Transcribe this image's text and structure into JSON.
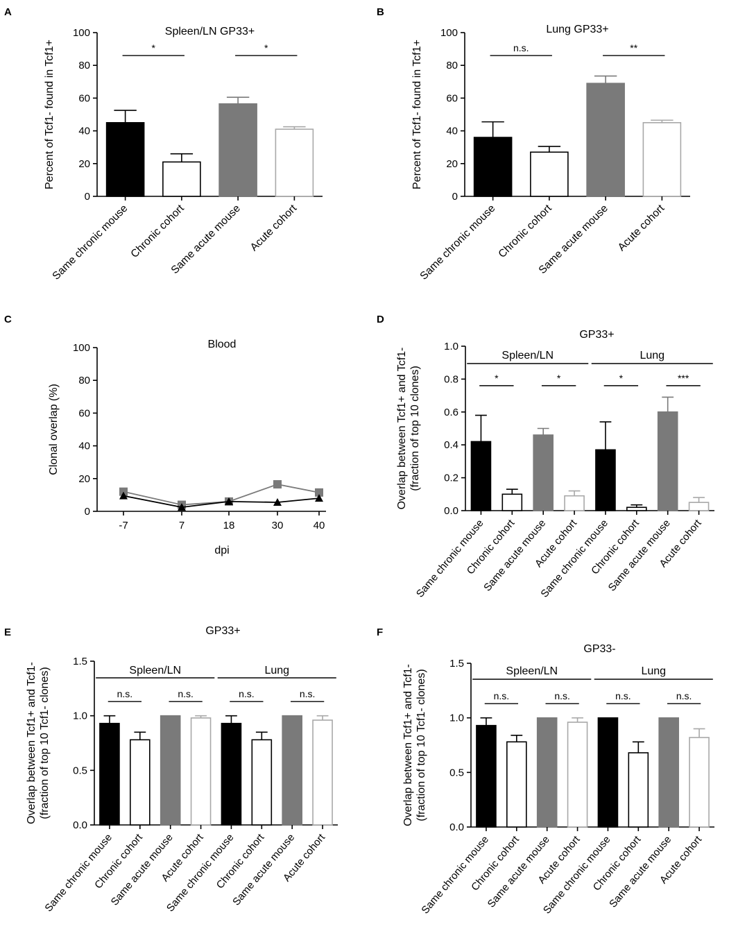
{
  "colors": {
    "black": "#000000",
    "gray": "#7a7a7a",
    "white": "#ffffff",
    "light_gray": "#a8a8a8"
  },
  "chart_data": [
    {
      "panel": "A",
      "type": "bar",
      "title": "Spleen/LN GP33+",
      "ylabel": "Percent of Tcf1- found in Tcf1+",
      "ylim": [
        0,
        100
      ],
      "yticks": [
        "0",
        "20",
        "40",
        "60",
        "80",
        "100"
      ],
      "categories": [
        "Same chronic mouse",
        "Chronic cohort",
        "Same acute mouse",
        "Acute cohort"
      ],
      "values": [
        45,
        21,
        56.5,
        41
      ],
      "errors": [
        7.5,
        5,
        4,
        1.5
      ],
      "fills": [
        "black",
        "white",
        "gray",
        "white"
      ],
      "significance": [
        {
          "from": 0,
          "to": 1,
          "label": "*",
          "y": 86
        },
        {
          "from": 2,
          "to": 3,
          "label": "*",
          "y": 86
        }
      ]
    },
    {
      "panel": "B",
      "type": "bar",
      "title": "Lung GP33+",
      "ylabel": "Percent of Tcf1- found in Tcf1+",
      "ylim": [
        0,
        100
      ],
      "yticks": [
        "0",
        "20",
        "40",
        "60",
        "80",
        "100"
      ],
      "categories": [
        "Same chronic mouse",
        "Chronic cohort",
        "Same acute mouse",
        "Acute cohort"
      ],
      "values": [
        36,
        27,
        69,
        45
      ],
      "errors": [
        9.5,
        3.5,
        4.5,
        1.5
      ],
      "fills": [
        "black",
        "white",
        "gray",
        "white"
      ],
      "significance": [
        {
          "from": 0,
          "to": 1,
          "label": "n.s.",
          "y": 86
        },
        {
          "from": 2,
          "to": 3,
          "label": "**",
          "y": 86
        }
      ]
    },
    {
      "panel": "C",
      "type": "line",
      "title": "Blood",
      "ylabel": "Clonal overlap (%)",
      "xlabel": "dpi",
      "ylim": [
        0,
        100
      ],
      "yticks": [
        "0",
        "20",
        "40",
        "60",
        "80",
        "100"
      ],
      "x": [
        "-7",
        "7",
        "18",
        "30",
        "40"
      ],
      "series": [
        {
          "name": "gray squares",
          "marker": "square",
          "color": "gray",
          "values": [
            12,
            4,
            6,
            16.5,
            11.5
          ]
        },
        {
          "name": "black triangles",
          "marker": "triangle",
          "color": "black",
          "values": [
            9.5,
            2.5,
            6,
            5.5,
            8
          ]
        }
      ]
    },
    {
      "panel": "D",
      "type": "bar",
      "title": "GP33+",
      "ylabel": [
        "Overlap between Tcf1+ and Tcf1-",
        "(fraction of top 10 clones)"
      ],
      "ylim": [
        0,
        1
      ],
      "yticks": [
        "0.0",
        "0.2",
        "0.4",
        "0.6",
        "0.8",
        "1.0"
      ],
      "groups": [
        {
          "label": "Spleen/LN",
          "from": 0,
          "to": 3
        },
        {
          "label": "Lung",
          "from": 4,
          "to": 7
        }
      ],
      "categories": [
        "Same chronic mouse",
        "Chronic cohort",
        "Same acute mouse",
        "Acute cohort",
        "Same chronic mouse",
        "Chronic cohort",
        "Same acute mouse",
        "Acute cohort"
      ],
      "values": [
        0.42,
        0.1,
        0.46,
        0.09,
        0.37,
        0.02,
        0.6,
        0.05
      ],
      "errors": [
        0.16,
        0.03,
        0.04,
        0.03,
        0.17,
        0.015,
        0.09,
        0.03
      ],
      "fills": [
        "black",
        "white",
        "gray",
        "white",
        "black",
        "white",
        "gray",
        "white"
      ],
      "significance": [
        {
          "from": 0,
          "to": 1,
          "label": "*",
          "y": 0.76
        },
        {
          "from": 2,
          "to": 3,
          "label": "*",
          "y": 0.76
        },
        {
          "from": 4,
          "to": 5,
          "label": "*",
          "y": 0.76
        },
        {
          "from": 6,
          "to": 7,
          "label": "***",
          "y": 0.76
        }
      ]
    },
    {
      "panel": "E",
      "type": "bar",
      "title": "GP33+",
      "ylabel": [
        "Overlap between Tcf1+ and Tcf1-",
        "(fraction of top 10 Tcf1- clones)"
      ],
      "ylim": [
        0,
        1.5
      ],
      "yticks": [
        "0.0",
        "0.5",
        "1.0",
        "1.5"
      ],
      "groups": [
        {
          "label": "Spleen/LN",
          "from": 0,
          "to": 3
        },
        {
          "label": "Lung",
          "from": 4,
          "to": 7
        }
      ],
      "categories": [
        "Same chronic mouse",
        "Chronic cohort",
        "Same acute mouse",
        "Acute cohort",
        "Same chronic mouse",
        "Chronic cohort",
        "Same acute mouse",
        "Acute cohort"
      ],
      "values": [
        0.93,
        0.78,
        1.0,
        0.98,
        0.93,
        0.78,
        1.0,
        0.96
      ],
      "errors": [
        0.07,
        0.07,
        0,
        0.02,
        0.07,
        0.07,
        0,
        0.04
      ],
      "fills": [
        "black",
        "white",
        "gray",
        "white",
        "black",
        "white",
        "gray",
        "white"
      ],
      "significance": [
        {
          "from": 0,
          "to": 1,
          "label": "n.s.",
          "y": 1.13
        },
        {
          "from": 2,
          "to": 3,
          "label": "n.s.",
          "y": 1.13
        },
        {
          "from": 4,
          "to": 5,
          "label": "n.s.",
          "y": 1.13
        },
        {
          "from": 6,
          "to": 7,
          "label": "n.s.",
          "y": 1.13
        }
      ]
    },
    {
      "panel": "F",
      "type": "bar",
      "title": "GP33-",
      "ylabel": [
        "Overlap between Tcf1+ and Tcf1-",
        "(fraction of top 10 Tcf1- clones)"
      ],
      "ylim": [
        0,
        1.5
      ],
      "yticks": [
        "0.0",
        "0.5",
        "1.0",
        "1.5"
      ],
      "groups": [
        {
          "label": "Spleen/LN",
          "from": 0,
          "to": 3
        },
        {
          "label": "Lung",
          "from": 4,
          "to": 7
        }
      ],
      "categories": [
        "Same chronic mouse",
        "Chronic cohort",
        "Same acute mouse",
        "Acute cohort",
        "Same chronic mouse",
        "Chronic cohort",
        "Same acute mouse",
        "Acute cohort"
      ],
      "values": [
        0.93,
        0.78,
        1.0,
        0.96,
        1.0,
        0.68,
        1.0,
        0.82
      ],
      "errors": [
        0.07,
        0.06,
        0,
        0.04,
        0,
        0.1,
        0,
        0.08
      ],
      "fills": [
        "black",
        "white",
        "gray",
        "white",
        "black",
        "white",
        "gray",
        "white"
      ],
      "significance": [
        {
          "from": 0,
          "to": 1,
          "label": "n.s.",
          "y": 1.13
        },
        {
          "from": 2,
          "to": 3,
          "label": "n.s.",
          "y": 1.13
        },
        {
          "from": 4,
          "to": 5,
          "label": "n.s.",
          "y": 1.13
        },
        {
          "from": 6,
          "to": 7,
          "label": "n.s.",
          "y": 1.13
        }
      ]
    }
  ]
}
